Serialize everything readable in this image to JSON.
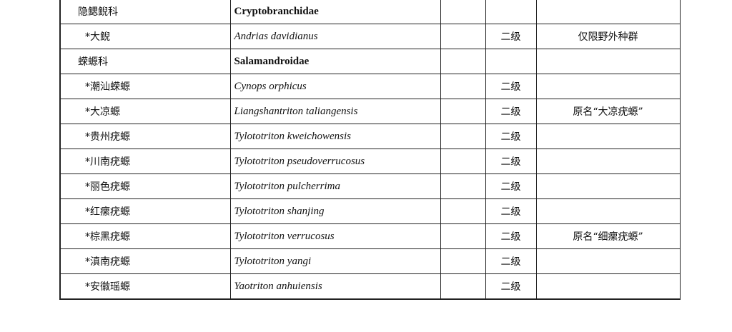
{
  "rows": [
    {
      "cn": "隐鳃鲵科",
      "latin": "Cryptobranchidae",
      "type": "family",
      "level": "",
      "note": ""
    },
    {
      "cn": "*大鲵",
      "latin": "Andrias davidianus",
      "type": "species",
      "level": "二级",
      "note": "仅限野外种群"
    },
    {
      "cn": "蝾螈科",
      "latin": "Salamandroidae",
      "type": "family",
      "level": "",
      "note": ""
    },
    {
      "cn": "*潮汕蝾螈",
      "latin": "Cynops orphicus",
      "type": "species",
      "level": "二级",
      "note": ""
    },
    {
      "cn": "*大凉螈",
      "latin": "Liangshantriton taliangensis",
      "type": "species",
      "level": "二级",
      "note": "原名“大凉疣螈”"
    },
    {
      "cn": "*贵州疣螈",
      "latin": "Tylototriton kweichowensis",
      "type": "species",
      "level": "二级",
      "note": ""
    },
    {
      "cn": "*川南疣螈",
      "latin": "Tylototriton pseudoverrucosus",
      "type": "species",
      "level": "二级",
      "note": ""
    },
    {
      "cn": "*丽色疣螈",
      "latin": "Tylototriton pulcherrima",
      "type": "species",
      "level": "二级",
      "note": ""
    },
    {
      "cn": "*红瘰疣螈",
      "latin": "Tylototriton shanjing",
      "type": "species",
      "level": "二级",
      "note": ""
    },
    {
      "cn": "*棕黑疣螈",
      "latin": "Tylototriton verrucosus",
      "type": "species",
      "level": "二级",
      "note": "原名“细瘰疣螈”"
    },
    {
      "cn": "*滇南疣螈",
      "latin": "Tylototriton yangi",
      "type": "species",
      "level": "二级",
      "note": ""
    },
    {
      "cn": "*安徽瑶螈",
      "latin": "Yaotriton anhuiensis",
      "type": "species",
      "level": "二级",
      "note": ""
    }
  ]
}
